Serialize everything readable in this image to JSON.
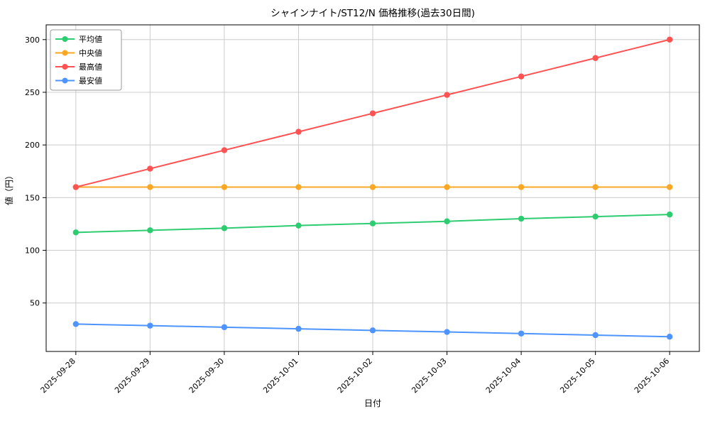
{
  "chart_data": {
    "type": "line",
    "title": "シャインナイト/ST12/N 価格推移(過去30日間)",
    "xlabel": "日付",
    "ylabel": "値（円）",
    "categories": [
      "2025-09-28",
      "2025-09-29",
      "2025-09-30",
      "2025-10-01",
      "2025-10-02",
      "2025-10-03",
      "2025-10-04",
      "2025-10-05",
      "2025-10-06"
    ],
    "series": [
      {
        "name": "平均値",
        "color": "#2ecc71",
        "values": [
          117,
          119,
          121,
          123.5,
          125.5,
          127.5,
          130,
          132,
          134
        ]
      },
      {
        "name": "中央値",
        "color": "#f9a825",
        "values": [
          160,
          160,
          160,
          160,
          160,
          160,
          160,
          160,
          160
        ]
      },
      {
        "name": "最高値",
        "color": "#ff5252",
        "values": [
          160,
          177.5,
          195,
          212.5,
          230,
          247.5,
          265,
          282.5,
          300
        ]
      },
      {
        "name": "最安値",
        "color": "#4d94ff",
        "values": [
          30,
          28.5,
          27,
          25.5,
          24,
          22.5,
          21,
          19.5,
          18
        ]
      }
    ],
    "ylim": [
      4,
      314
    ],
    "yticks": [
      50,
      100,
      150,
      200,
      250,
      300
    ],
    "grid": true,
    "legend_position": "upper left",
    "grid_color": "#cccccc",
    "spine_color": "#000000",
    "background_color": "#ffffff"
  }
}
